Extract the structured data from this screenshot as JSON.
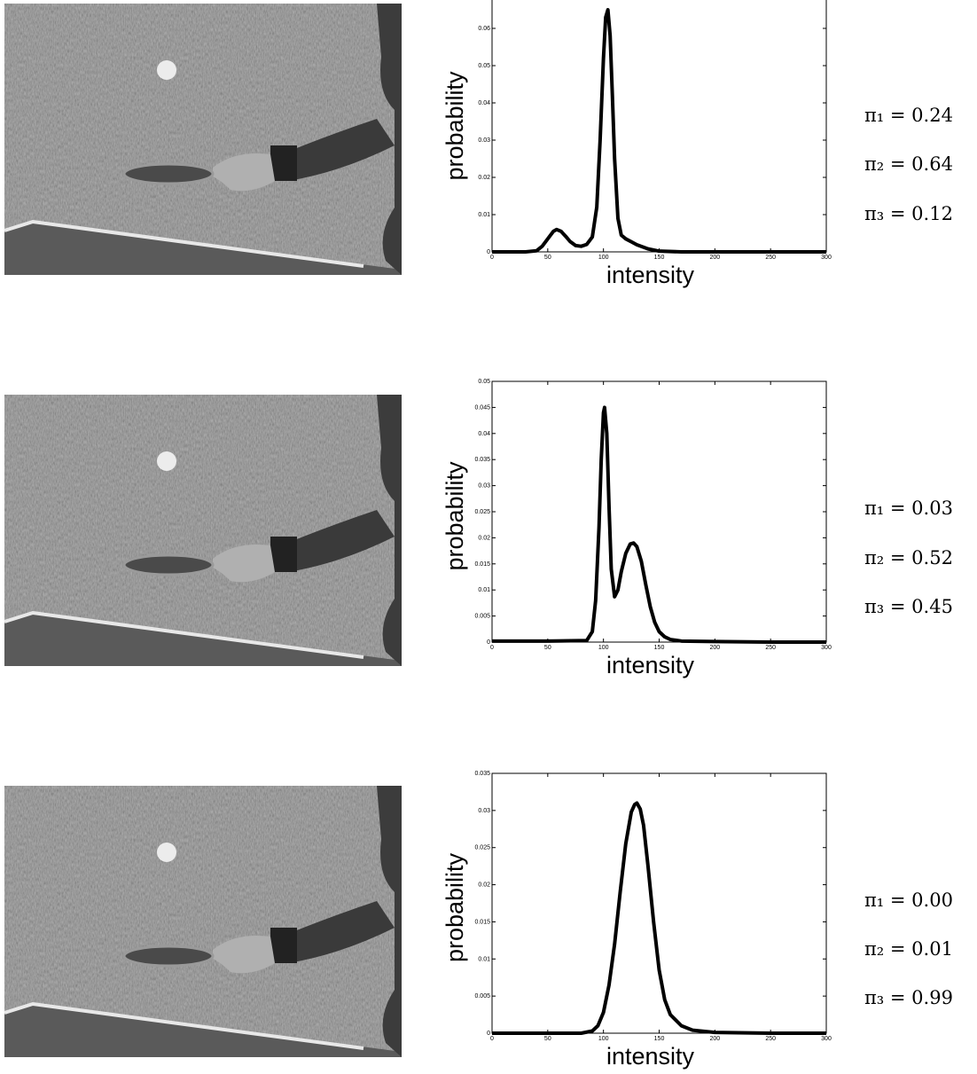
{
  "chart_data": [
    {
      "type": "line",
      "xlabel": "intensity",
      "ylabel": "probability",
      "xlim": [
        0,
        300
      ],
      "xticks": [
        0,
        50,
        100,
        150,
        200,
        250,
        300
      ],
      "ylim": [
        0,
        0.07
      ],
      "yticks": [
        0,
        0.01,
        0.02,
        0.03,
        0.04,
        0.05,
        0.06
      ],
      "grid": false,
      "x": [
        0,
        30,
        40,
        45,
        50,
        55,
        58,
        62,
        66,
        70,
        75,
        80,
        85,
        90,
        94,
        97,
        100,
        102,
        104,
        106,
        108,
        110,
        113,
        116,
        120,
        125,
        130,
        140,
        150,
        170,
        200,
        250,
        300
      ],
      "series": [
        {
          "color": "#000000",
          "values": [
            0,
            0,
            0.0003,
            0.0015,
            0.0035,
            0.0055,
            0.006,
            0.0055,
            0.0042,
            0.0028,
            0.0017,
            0.0015,
            0.002,
            0.004,
            0.012,
            0.03,
            0.052,
            0.063,
            0.065,
            0.058,
            0.042,
            0.025,
            0.009,
            0.0045,
            0.0035,
            0.0027,
            0.0019,
            0.0008,
            0.0002,
            0,
            0,
            0,
            0
          ]
        }
      ],
      "annotations": [
        "π₁ = 0.24",
        "π₂ = 0.64",
        "π₃ = 0.12"
      ]
    },
    {
      "type": "line",
      "xlabel": "intensity",
      "ylabel": "probability",
      "xlim": [
        0,
        300
      ],
      "xticks": [
        0,
        50,
        100,
        150,
        200,
        250,
        300
      ],
      "ylim": [
        0,
        0.05
      ],
      "yticks": [
        0,
        0.005,
        0.01,
        0.015,
        0.02,
        0.025,
        0.03,
        0.035,
        0.04,
        0.045,
        0.05
      ],
      "grid": false,
      "x": [
        0,
        50,
        85,
        90,
        93,
        96,
        98,
        100,
        101,
        103,
        105,
        107,
        110,
        113,
        116,
        120,
        124,
        127,
        130,
        134,
        138,
        142,
        146,
        150,
        155,
        160,
        170,
        200,
        250,
        300
      ],
      "series": [
        {
          "color": "#000000",
          "values": [
            0.0002,
            0.0002,
            0.0003,
            0.002,
            0.008,
            0.022,
            0.035,
            0.044,
            0.045,
            0.04,
            0.026,
            0.014,
            0.0087,
            0.01,
            0.0135,
            0.017,
            0.0188,
            0.019,
            0.0183,
            0.0155,
            0.011,
            0.0068,
            0.0038,
            0.002,
            0.001,
            0.0005,
            0.0002,
            0.0001,
            0,
            0
          ]
        }
      ],
      "annotations": [
        "π₁ = 0.03",
        "π₂ = 0.52",
        "π₃ = 0.45"
      ]
    },
    {
      "type": "line",
      "xlabel": "intensity",
      "ylabel": "probability",
      "xlim": [
        0,
        300
      ],
      "xticks": [
        0,
        50,
        100,
        150,
        200,
        250,
        300
      ],
      "ylim": [
        0,
        0.035
      ],
      "yticks": [
        0,
        0.005,
        0.01,
        0.015,
        0.02,
        0.025,
        0.03,
        0.035
      ],
      "grid": false,
      "x": [
        0,
        80,
        90,
        95,
        100,
        105,
        110,
        115,
        120,
        125,
        128,
        130,
        133,
        136,
        140,
        145,
        150,
        155,
        160,
        170,
        180,
        200,
        250,
        300
      ],
      "series": [
        {
          "color": "#000000",
          "values": [
            0,
            0,
            0.0003,
            0.001,
            0.0028,
            0.0065,
            0.012,
            0.019,
            0.0255,
            0.0298,
            0.0308,
            0.031,
            0.0302,
            0.028,
            0.0225,
            0.015,
            0.0085,
            0.0045,
            0.0025,
            0.001,
            0.0004,
            0.0001,
            0,
            0
          ]
        }
      ],
      "annotations": [
        "π₁ = 0.00",
        "π₂ = 0.01",
        "π₃ = 0.99"
      ]
    }
  ]
}
